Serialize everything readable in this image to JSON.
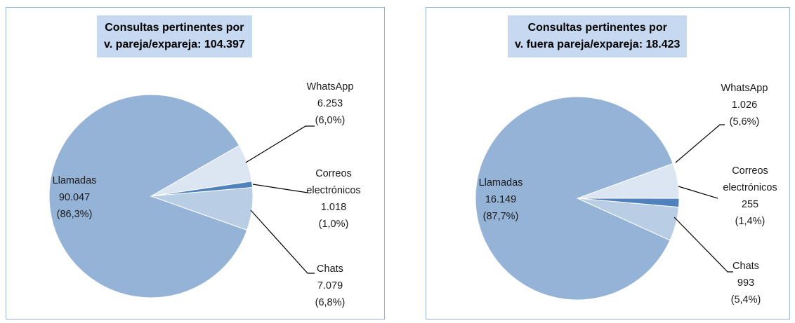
{
  "chart_data": [
    {
      "type": "pie",
      "title": [
        "Consultas pertinentes por",
        "v. pareja/expareja: 104.397"
      ],
      "categories": [
        "WhatsApp",
        "Correos electrónicos",
        "Chats",
        "Llamadas"
      ],
      "values": [
        6253,
        1018,
        7079,
        90047
      ],
      "value_labels": [
        "6.253",
        "1.018",
        "7.079",
        "90.047"
      ],
      "percent_labels": [
        "(6,0%)",
        "(1,0%)",
        "(6,8%)",
        "(86,3%)"
      ],
      "colors": [
        "#dce6f2",
        "#4f81bd",
        "#b9cde5",
        "#95b3d7"
      ]
    },
    {
      "type": "pie",
      "title": [
        "Consultas pertinentes por",
        "v. fuera pareja/expareja: 18.423"
      ],
      "categories": [
        "WhatsApp",
        "Correos electrónicos",
        "Chats",
        "Llamadas"
      ],
      "values": [
        1026,
        255,
        993,
        16149
      ],
      "value_labels": [
        "1.026",
        "255",
        "993",
        "16.149"
      ],
      "percent_labels": [
        "(5,6%)",
        "(1,4%)",
        "(5,4%)",
        "(87,7%)"
      ],
      "colors": [
        "#dce6f2",
        "#4f81bd",
        "#b9cde5",
        "#95b3d7"
      ]
    }
  ]
}
